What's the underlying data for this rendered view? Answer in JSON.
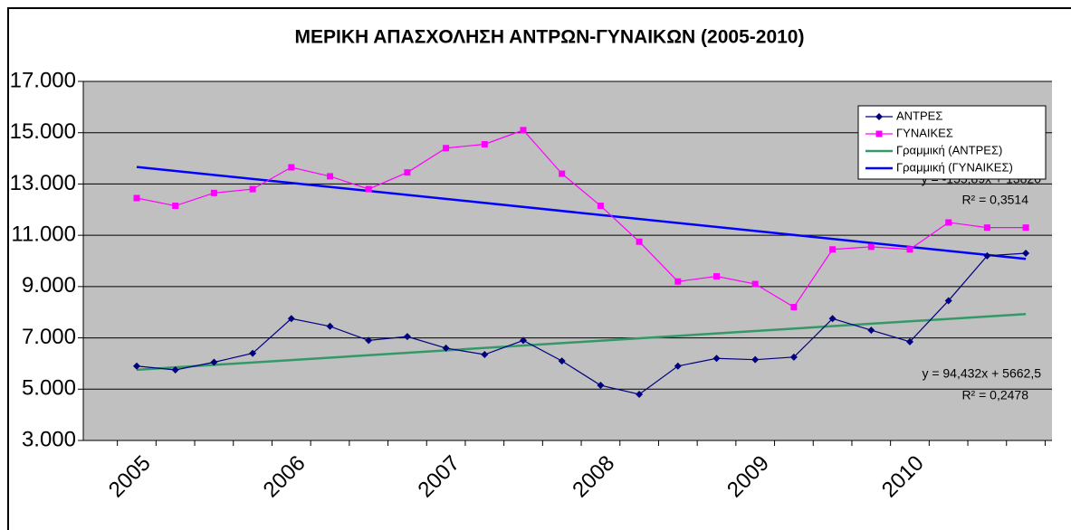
{
  "chart_data": {
    "type": "line",
    "title": "ΜΕΡΙΚΗ ΑΠΑΣΧΟΛΗΣΗ ΑΝΤΡΩΝ-ΓΥΝΑΙΚΩΝ (2005-2010)",
    "categories": [
      "2005",
      null,
      null,
      null,
      "2006",
      null,
      null,
      null,
      "2007",
      null,
      null,
      null,
      "2008",
      null,
      null,
      null,
      "2009",
      null,
      null,
      null,
      "2010",
      null,
      null,
      null
    ],
    "series": [
      {
        "name": "ΑΝΤΡΕΣ",
        "color": "#000080",
        "marker": "diamond",
        "values": [
          5900,
          5750,
          6050,
          6400,
          7750,
          7450,
          6900,
          7050,
          6600,
          6350,
          6900,
          6100,
          5150,
          4800,
          5900,
          6200,
          6150,
          6250,
          7750,
          7300,
          6850,
          8450,
          10200,
          10300
        ]
      },
      {
        "name": "ΓΥΝΑΙΚΕΣ",
        "color": "#ff00ff",
        "marker": "square",
        "values": [
          12450,
          12150,
          12650,
          12800,
          13650,
          13300,
          12800,
          13450,
          14400,
          14550,
          15100,
          13400,
          12150,
          10750,
          9200,
          9400,
          9100,
          8200,
          10450,
          10550,
          10450,
          11500,
          11300,
          11300
        ]
      }
    ],
    "trendlines": [
      {
        "name": "Γραμμική (ΑΝΤΡΕΣ)",
        "color": "#339966",
        "slope": 94.432,
        "intercept": 5662.5,
        "equation": "y = 94,432x + 5662,5",
        "r2": "R² = 0,2478"
      },
      {
        "name": "Γραμμική (ΓΥΝΑΙΚΕΣ)",
        "color": "#0000ff",
        "slope": -155.89,
        "intercept": 13820,
        "equation": "y = -155,89x + 13820",
        "r2": "R² = 0,3514"
      }
    ],
    "ylim": [
      3000,
      17000
    ],
    "yticks": [
      {
        "value": 3000,
        "label": "3.000"
      },
      {
        "value": 5000,
        "label": "5.000"
      },
      {
        "value": 7000,
        "label": "7.000"
      },
      {
        "value": 9000,
        "label": "9.000"
      },
      {
        "value": 11000,
        "label": "11.000"
      },
      {
        "value": 13000,
        "label": "13.000"
      },
      {
        "value": 15000,
        "label": "15.000"
      },
      {
        "value": 17000,
        "label": "17.000"
      }
    ],
    "grid": true,
    "legend": "top-right"
  }
}
